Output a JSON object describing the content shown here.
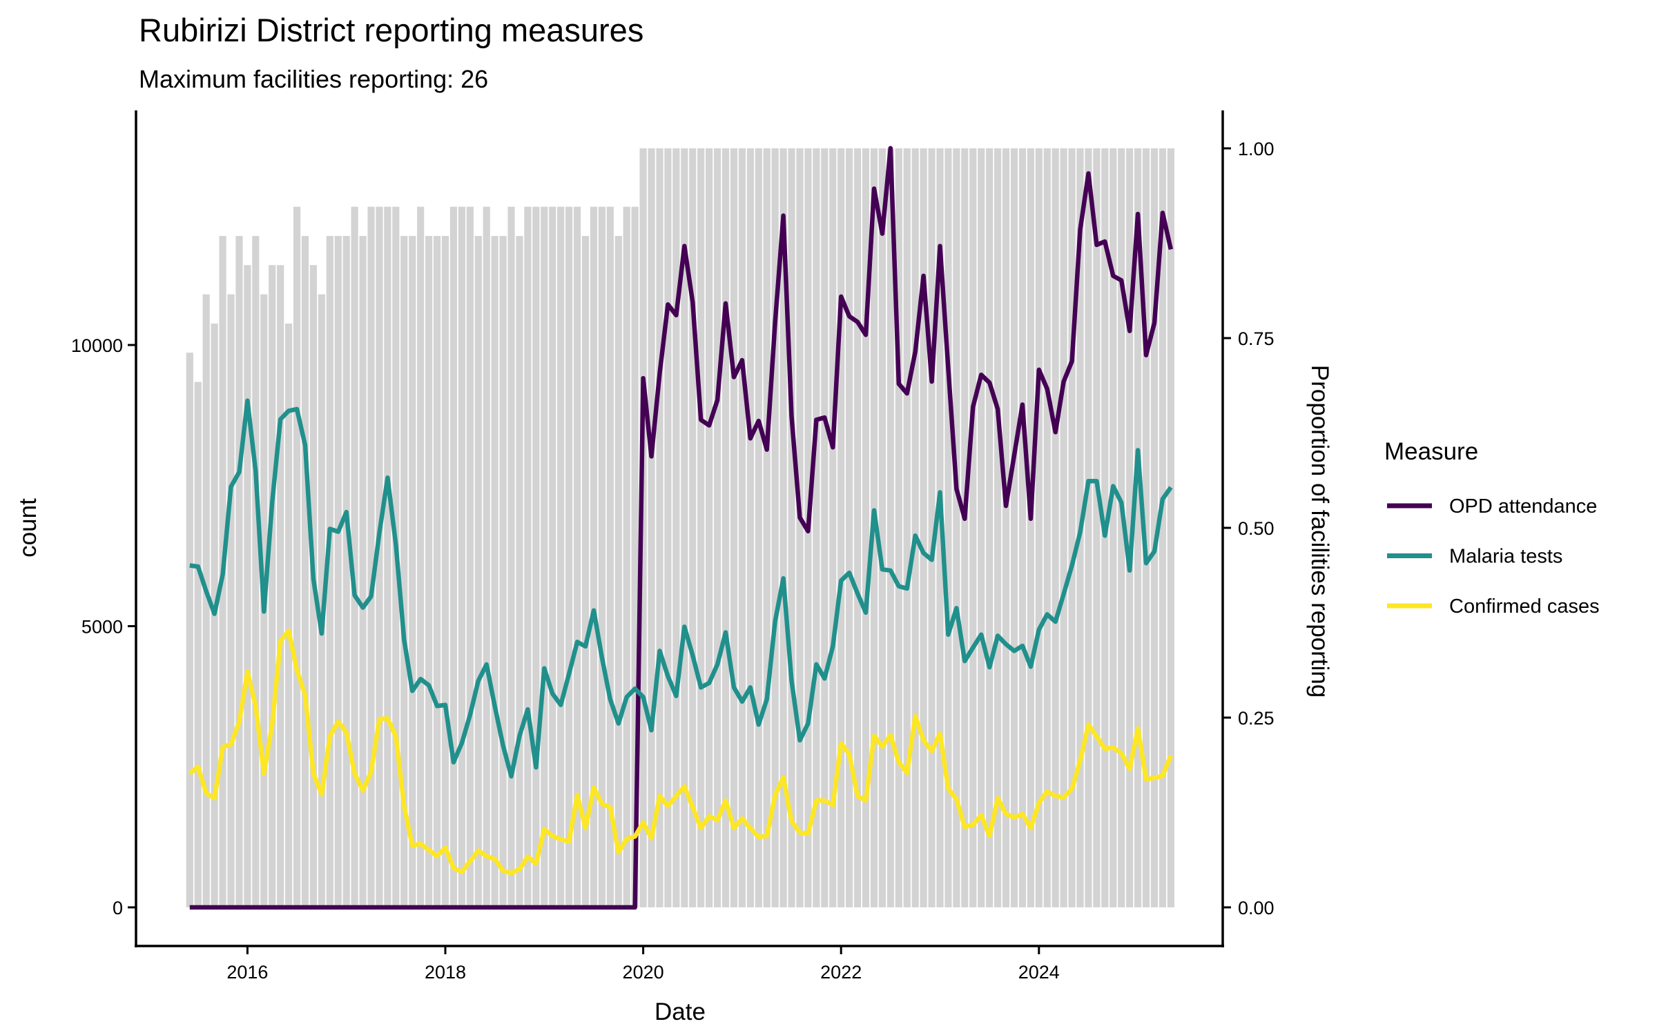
{
  "chart_data": {
    "type": "line",
    "title": "Rubirizi District reporting measures",
    "subtitle": "Maximum facilities reporting: 26",
    "xlabel": "Date",
    "ylabel": "count",
    "ylabel_right": "Proportion of facilities reporting",
    "x_start": "2015-06",
    "x_interval": "month",
    "x_ticks": [
      "2016",
      "2018",
      "2020",
      "2022",
      "2024"
    ],
    "xlim": [
      2014.9,
      2025.9
    ],
    "y_ticks": [
      "0",
      "5000",
      "10000"
    ],
    "ylim": [
      -1500,
      14000
    ],
    "y_right_ticks": [
      "0.00",
      "0.25",
      "0.50",
      "0.75",
      "1.00"
    ],
    "y_right_lim": [
      0,
      1
    ],
    "grid": false,
    "legend": {
      "title": "Measure",
      "position": "right",
      "entries": [
        "OPD attendance",
        "Malaria tests",
        "Confirmed cases"
      ]
    },
    "bars": {
      "name": "Facilities reporting",
      "max_facilities": 26,
      "color": "#d3d3d3",
      "facilities": [
        19,
        18,
        21,
        20,
        23,
        21,
        23,
        22,
        23,
        21,
        22,
        22,
        20,
        24,
        23,
        22,
        21,
        23,
        23,
        23,
        24,
        23,
        24,
        24,
        24,
        24,
        23,
        23,
        24,
        23,
        23,
        23,
        24,
        24,
        24,
        23,
        24,
        23,
        23,
        24,
        23,
        24,
        24,
        24,
        24,
        24,
        24,
        24,
        23,
        24,
        24,
        24,
        23,
        24,
        24,
        26,
        26,
        26,
        26,
        26,
        26,
        26,
        26,
        26,
        26,
        26,
        26,
        26,
        26,
        26,
        26,
        26,
        26,
        26,
        26,
        26,
        26,
        26,
        26,
        26,
        26,
        26,
        26,
        26,
        26,
        26,
        26,
        26,
        26,
        26,
        26,
        26,
        26,
        26,
        26,
        26,
        26,
        26,
        26,
        26,
        26,
        26,
        26,
        26,
        26,
        26,
        26,
        26,
        26,
        26,
        26,
        26,
        26,
        26,
        26,
        26,
        26,
        26,
        26,
        26
      ]
    },
    "series": [
      {
        "name": "OPD attendance",
        "color": "#440154",
        "values": [
          0,
          0,
          0,
          0,
          0,
          0,
          0,
          0,
          0,
          0,
          0,
          0,
          0,
          0,
          0,
          0,
          0,
          0,
          0,
          0,
          0,
          0,
          0,
          0,
          0,
          0,
          0,
          0,
          0,
          0,
          0,
          0,
          0,
          0,
          0,
          0,
          0,
          0,
          0,
          0,
          0,
          0,
          0,
          0,
          0,
          0,
          0,
          0,
          0,
          0,
          0,
          0,
          0,
          0,
          0,
          9410,
          8020,
          9500,
          10720,
          10530,
          11760,
          10760,
          8670,
          8570,
          9020,
          10740,
          9430,
          9730,
          8340,
          8650,
          8140,
          10410,
          12300,
          8730,
          6930,
          6690,
          8670,
          8710,
          8180,
          10860,
          10510,
          10410,
          10180,
          12780,
          11980,
          13500,
          9310,
          9140,
          9880,
          11230,
          9350,
          11760,
          9590,
          7440,
          6910,
          8900,
          9470,
          9330,
          8860,
          7140,
          8040,
          8940,
          6910,
          9560,
          9220,
          8450,
          9350,
          9710,
          12050,
          13050,
          11780,
          11840,
          11230,
          11150,
          10250,
          12330,
          9820,
          10390,
          12350,
          11700
        ]
      },
      {
        "name": "Malaria tests",
        "color": "#21908c",
        "values": [
          6080,
          6060,
          5620,
          5220,
          5920,
          7480,
          7740,
          9010,
          7760,
          5260,
          7200,
          8680,
          8830,
          8860,
          8220,
          5840,
          4870,
          6730,
          6680,
          7030,
          5550,
          5330,
          5530,
          6660,
          7640,
          6450,
          4760,
          3850,
          4060,
          3950,
          3580,
          3600,
          2580,
          2920,
          3420,
          4030,
          4320,
          3580,
          2880,
          2330,
          3050,
          3520,
          2490,
          4250,
          3800,
          3600,
          4150,
          4720,
          4640,
          5280,
          4440,
          3700,
          3270,
          3740,
          3890,
          3740,
          3150,
          4560,
          4110,
          3760,
          4990,
          4480,
          3910,
          3990,
          4320,
          4890,
          3910,
          3660,
          3910,
          3250,
          3700,
          5090,
          5850,
          4030,
          2970,
          3270,
          4320,
          4070,
          4640,
          5810,
          5950,
          5580,
          5240,
          7060,
          6010,
          5990,
          5710,
          5670,
          6610,
          6300,
          6180,
          7380,
          4850,
          5320,
          4380,
          4620,
          4850,
          4270,
          4830,
          4680,
          4560,
          4650,
          4280,
          4940,
          5210,
          5080,
          5570,
          6080,
          6670,
          7580,
          7580,
          6610,
          7490,
          7200,
          5990,
          8130,
          6120,
          6330,
          7260,
          7470
        ]
      },
      {
        "name": "Confirmed cases",
        "color": "#fde725",
        "values": [
          2380,
          2500,
          2030,
          1940,
          2850,
          2900,
          3300,
          4190,
          3580,
          2380,
          3250,
          4730,
          4920,
          4220,
          3770,
          2380,
          2010,
          3040,
          3300,
          3110,
          2380,
          2080,
          2410,
          3350,
          3360,
          3040,
          1800,
          1100,
          1130,
          1020,
          910,
          1060,
          700,
          630,
          820,
          1010,
          910,
          860,
          650,
          610,
          680,
          900,
          780,
          1390,
          1270,
          1210,
          1170,
          2000,
          1410,
          2130,
          1840,
          1780,
          980,
          1220,
          1260,
          1510,
          1230,
          1980,
          1800,
          1980,
          2150,
          1780,
          1410,
          1620,
          1550,
          1900,
          1410,
          1580,
          1410,
          1250,
          1270,
          2000,
          2310,
          1530,
          1330,
          1310,
          1900,
          1900,
          1820,
          2920,
          2720,
          1980,
          1900,
          3050,
          2860,
          3060,
          2580,
          2390,
          3400,
          2970,
          2780,
          3090,
          2110,
          1920,
          1430,
          1470,
          1640,
          1270,
          1940,
          1660,
          1600,
          1660,
          1410,
          1860,
          2060,
          1980,
          1960,
          2110,
          2610,
          3250,
          3040,
          2820,
          2840,
          2740,
          2460,
          3180,
          2280,
          2300,
          2340,
          2700
        ]
      }
    ]
  }
}
